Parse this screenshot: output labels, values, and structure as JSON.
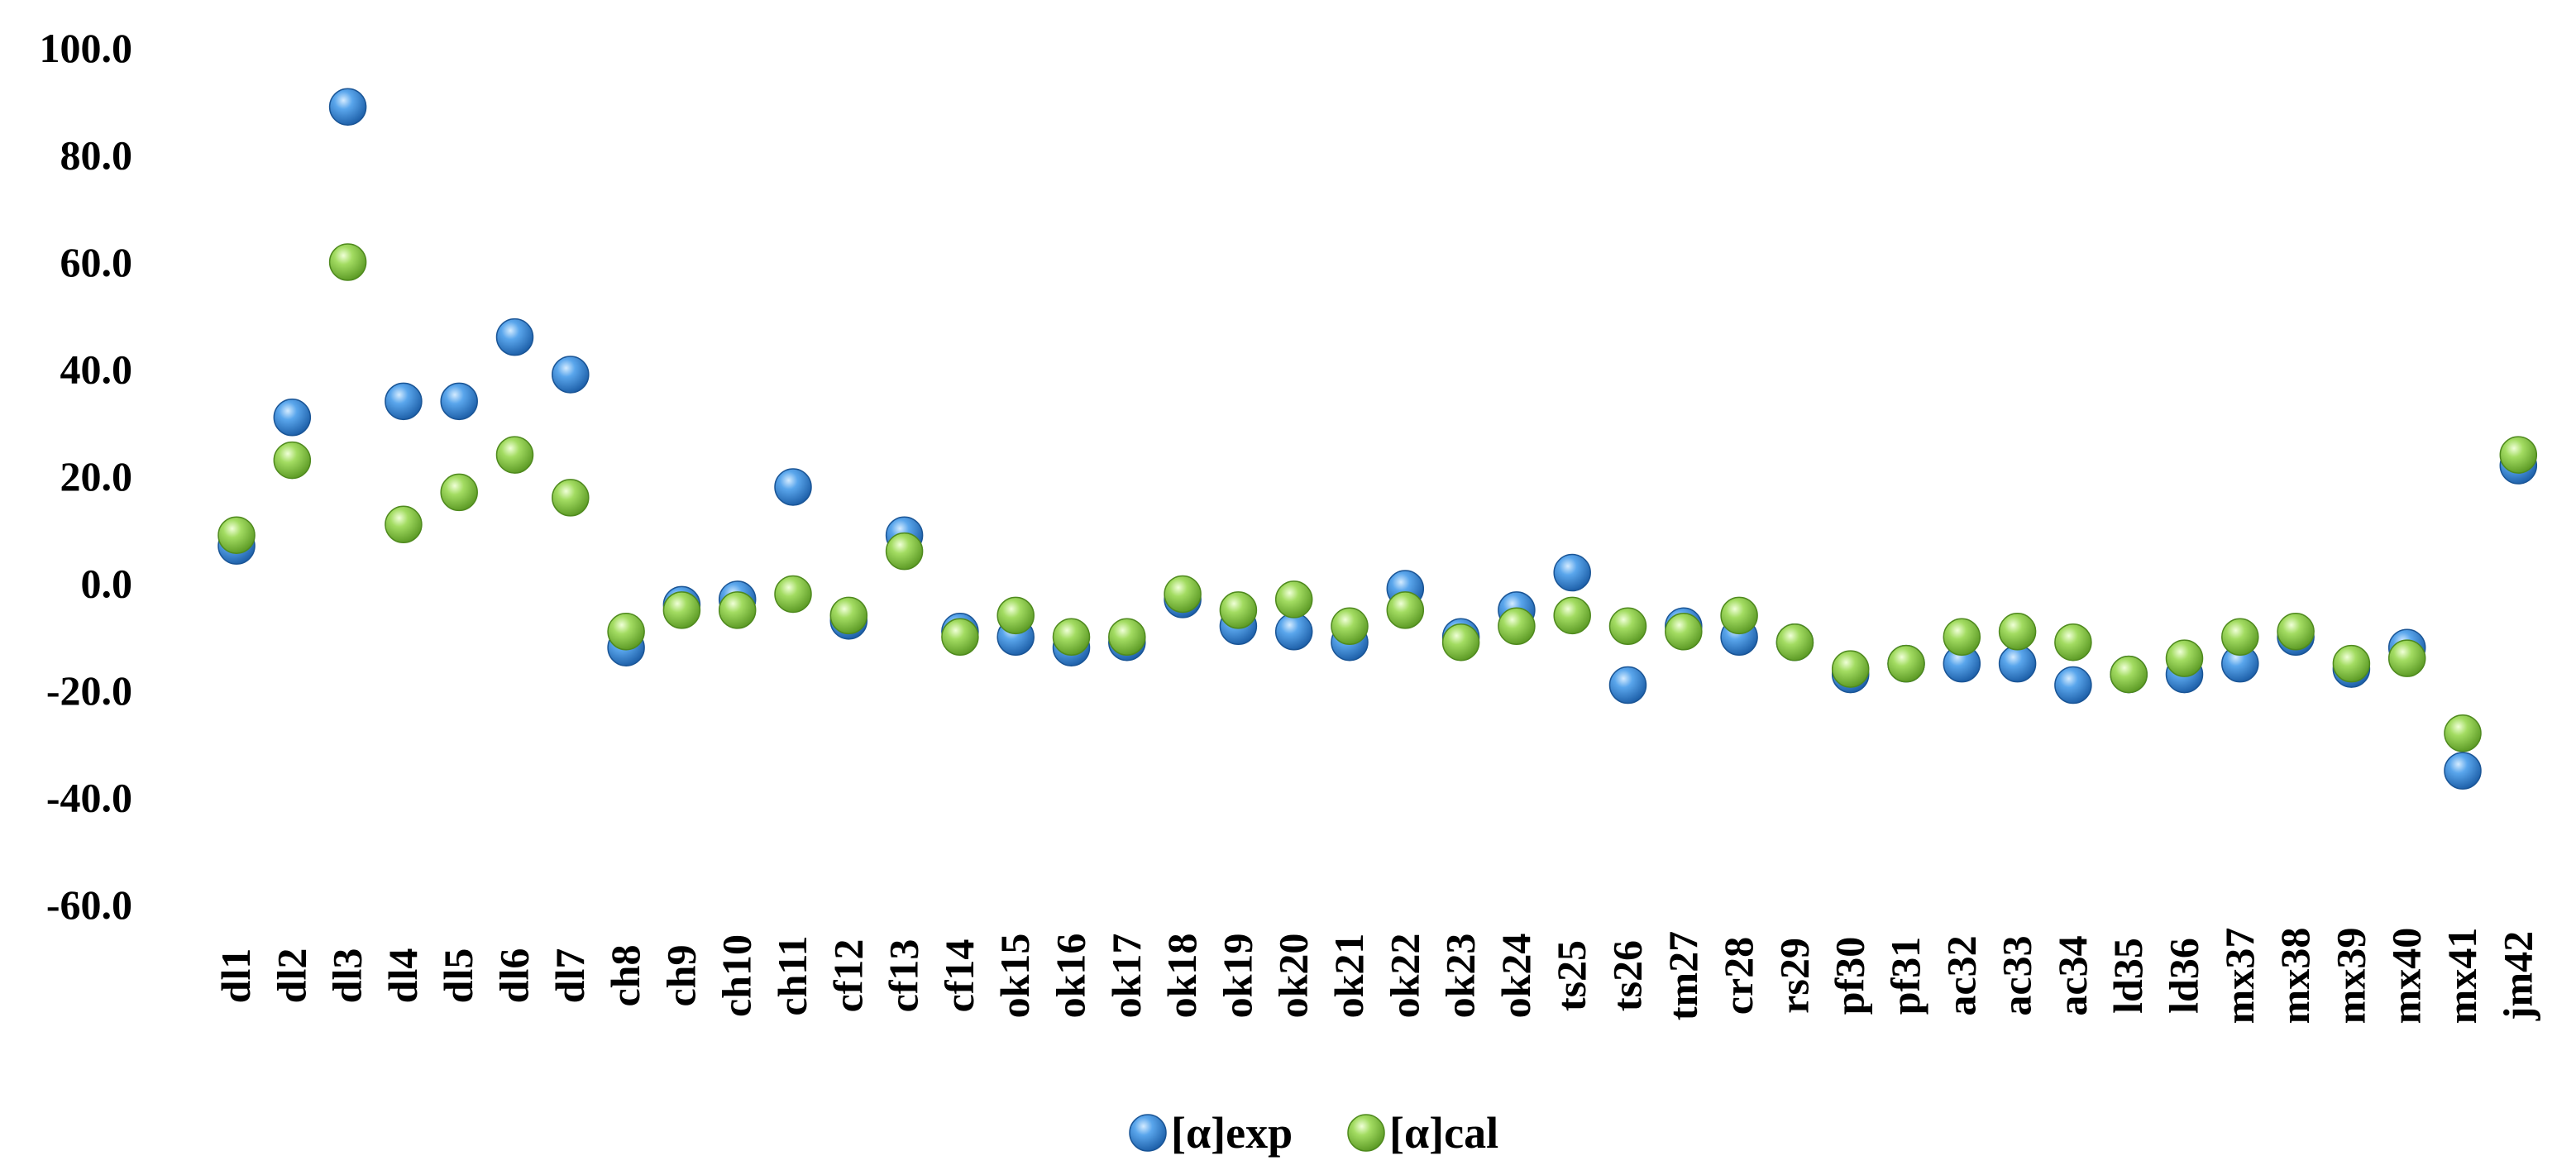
{
  "chart_data": {
    "type": "scatter",
    "categories": [
      "dl1",
      "dl2",
      "dl3",
      "dl4",
      "dl5",
      "dl6",
      "dl7",
      "ch8",
      "ch9",
      "ch10",
      "ch11",
      "cf12",
      "cf13",
      "cf14",
      "ok15",
      "ok16",
      "ok17",
      "ok18",
      "ok19",
      "ok20",
      "ok21",
      "ok22",
      "ok23",
      "ok24",
      "ts25",
      "ts26",
      "tm27",
      "cr28",
      "rs29",
      "pf30",
      "pf31",
      "ac32",
      "ac33",
      "ac34",
      "ld35",
      "ld36",
      "mx37",
      "mx38",
      "mx39",
      "mx40",
      "mx41",
      "jm42"
    ],
    "series": [
      {
        "name": "[α]exp",
        "color": "#3c8fd8",
        "values": [
          7.0,
          31.0,
          89.0,
          34.0,
          34.0,
          46.0,
          39.0,
          -12.0,
          -4.0,
          -3.0,
          18.0,
          -7.0,
          9.0,
          -9.0,
          -10.0,
          -12.0,
          -11.0,
          -3.0,
          -8.0,
          -9.0,
          -11.0,
          -1.0,
          -10.0,
          -5.0,
          2.0,
          -19.0,
          -8.0,
          -10.0,
          -11.0,
          -17.0,
          -15.0,
          -15.0,
          -15.0,
          -19.0,
          -17.0,
          -17.0,
          -15.0,
          -10.0,
          -16.0,
          -12.0,
          -35.0,
          22.0
        ]
      },
      {
        "name": "[α]cal",
        "color": "#8fd14f",
        "values": [
          9.0,
          23.0,
          60.0,
          11.0,
          17.0,
          24.0,
          16.0,
          -9.0,
          -5.0,
          -5.0,
          -2.0,
          -6.0,
          6.0,
          -10.0,
          -6.0,
          -10.0,
          -10.0,
          -2.0,
          -5.0,
          -3.0,
          -8.0,
          -5.0,
          -11.0,
          -8.0,
          -6.0,
          -8.0,
          -9.0,
          -6.0,
          -11.0,
          -16.0,
          -15.0,
          -10.0,
          -9.0,
          -11.0,
          -17.0,
          -14.0,
          -10.0,
          -9.0,
          -15.0,
          -14.0,
          -28.0,
          24.0
        ]
      }
    ],
    "ylim": [
      -60,
      100
    ],
    "yticks": [
      "100.0",
      "80.0",
      "60.0",
      "40.0",
      "20.0",
      "0.0",
      "-20.0",
      "-40.0",
      "-60.0"
    ],
    "ytick_values": [
      100,
      80,
      60,
      40,
      20,
      0,
      -20,
      -40,
      -60
    ],
    "xlabel": "",
    "ylabel": "",
    "title": "",
    "grid": false,
    "legend_position": "bottom"
  }
}
